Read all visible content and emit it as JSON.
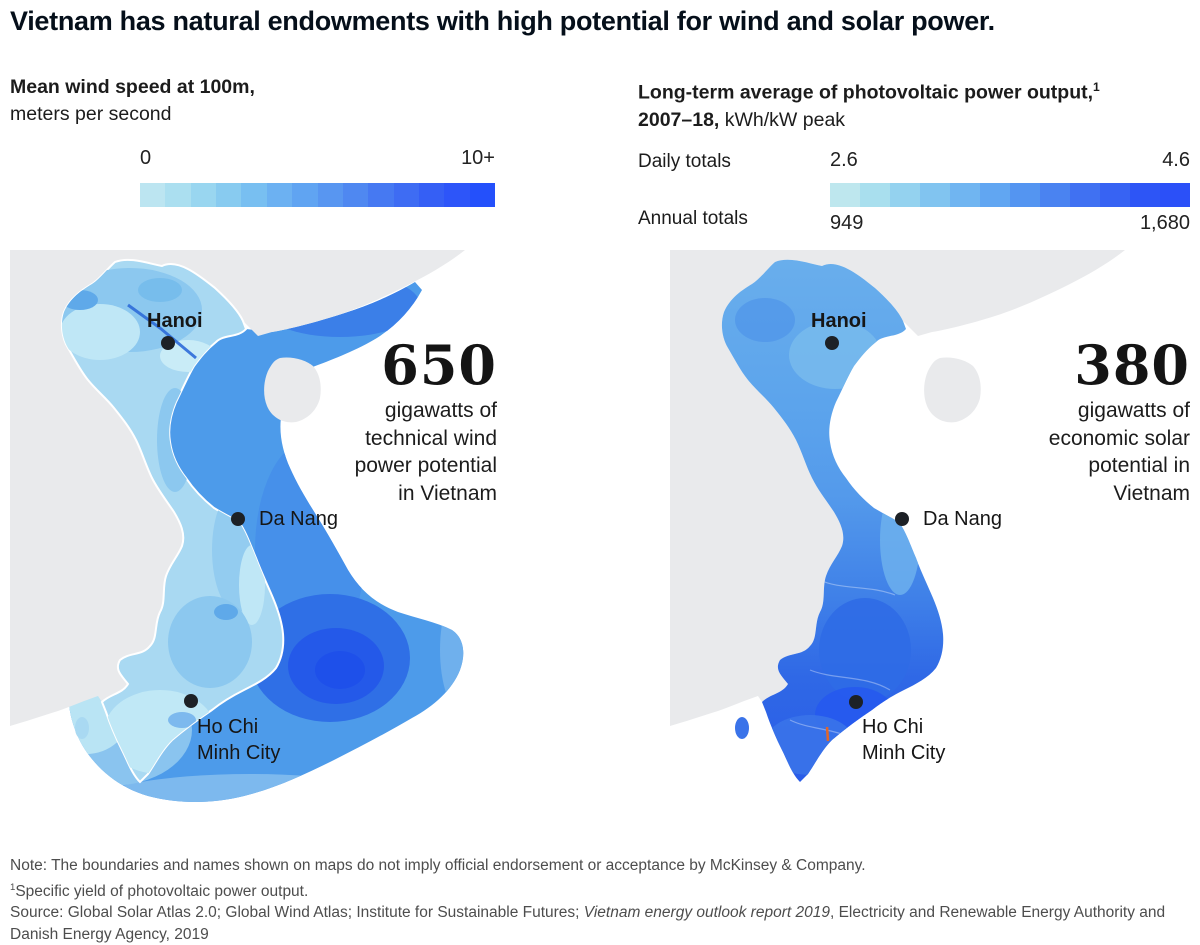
{
  "title": "Vietnam has natural endowments with high potential for wind and solar power.",
  "cities": {
    "hanoi": "Hanoi",
    "da_nang": "Da Nang",
    "hcmc_line1": "Ho Chi",
    "hcmc_line2": "Minh City"
  },
  "wind_panel": {
    "legend_title_bold": "Mean wind speed at 100m,",
    "legend_subtitle": "meters per second",
    "scale_min": "0",
    "scale_max": "10+",
    "ramp": [
      "#bce5f1",
      "#abdff0",
      "#99d6f0",
      "#88cbf0",
      "#78bff1",
      "#6cb1f2",
      "#60a4f2",
      "#5896f1",
      "#4f88f1",
      "#4679f2",
      "#3e6cf3",
      "#355ff5",
      "#2d55f9",
      "#2450fb"
    ],
    "stat_value": "650",
    "stat_caption": "gigawatts of technical wind power potential in Vietnam"
  },
  "solar_panel": {
    "legend_title_bold": "Long-term average of photovoltaic power output,",
    "legend_title_sup": "1",
    "legend_title_line2_bold": "2007–18,",
    "legend_title_line2_regular": " kWh/kW peak",
    "daily_label": "Daily totals",
    "annual_label": "Annual  totals",
    "daily_min": "2.6",
    "daily_max": "4.6",
    "annual_min": "949",
    "annual_max": "1,680",
    "ramp": [
      "#bee7ee",
      "#a9dfee",
      "#94d2ef",
      "#81c4f0",
      "#70b5f1",
      "#61a6f2",
      "#5495f1",
      "#4a83f1",
      "#4071f2",
      "#3763f3",
      "#2d55f6",
      "#2b50f8"
    ],
    "stat_value": "380",
    "stat_caption": "gigawatts of economic solar potential in Vietnam"
  },
  "map_colors": {
    "sea": "#ffffff",
    "neighbor_land": "#e9eaec",
    "wind_land_base": "#a9d9f2",
    "wind_band_base": "#4d9bea",
    "wind_band_dark_core": "#1e50ea",
    "solar_north": "#69aeec",
    "solar_south": "#2a5ce8",
    "city_dot": "#1d2126",
    "coastline": "#ffffff",
    "artifact_orange": "#e0662b"
  },
  "footer": {
    "note": "Note: The boundaries and names shown on maps do not imply official endorsement or acceptance by McKinsey & Company.",
    "footnote_sup": "1",
    "footnote": "Specific yield of photovoltaic power output.",
    "source_prefix": "Source: Global Solar Atlas 2.0; Global Wind Atlas; Institute for Sustainable Futures; ",
    "source_italic": "Vietnam energy outlook report 2019",
    "source_suffix": ", Electricity and Renewable Energy Authority and Danish Energy Agency, 2019"
  }
}
